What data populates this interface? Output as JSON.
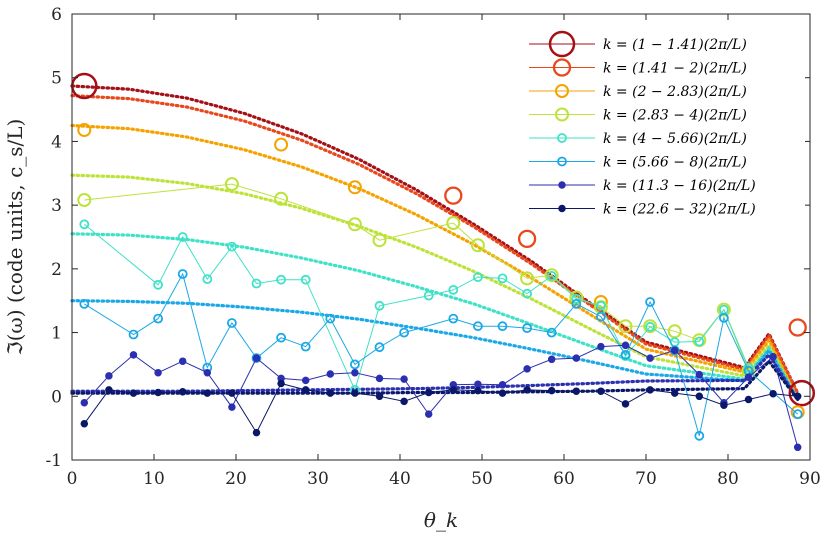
{
  "chart_data": {
    "type": "line",
    "title": "",
    "xlabel": "θ_k",
    "ylabel": "ℑ(ω) (code units, c_s/L)",
    "xlim": [
      0,
      90
    ],
    "ylim": [
      -1,
      6
    ],
    "xticks": [
      "0",
      "10",
      "20",
      "30",
      "40",
      "50",
      "60",
      "70",
      "80",
      "90"
    ],
    "yticks": [
      "-1",
      "0",
      "1",
      "2",
      "3",
      "4",
      "5",
      "6"
    ],
    "legend_position": "top-right",
    "series": [
      {
        "name": "k = (1 − 1.41)(2π/L)",
        "color": "#a50f15",
        "marker_size": "xl",
        "points": [
          [
            1.5,
            4.87
          ],
          [
            89.0,
            0.05
          ]
        ],
        "theory": [
          4.87,
          4.82,
          4.68,
          4.44,
          4.12,
          3.72,
          3.24,
          2.7,
          2.12,
          1.48,
          0.85,
          0.45,
          0.98,
          0.05
        ]
      },
      {
        "name": "k = (1.41 − 2)(2π/L)",
        "color": "#e8481c",
        "marker_size": "lg",
        "points": [
          [
            46.5,
            3.15
          ],
          [
            55.5,
            2.47
          ],
          [
            88.5,
            1.08
          ]
        ],
        "theory": [
          4.72,
          4.67,
          4.54,
          4.32,
          4.02,
          3.64,
          3.18,
          2.66,
          2.08,
          1.45,
          0.82,
          0.42,
          0.95,
          0.05
        ]
      },
      {
        "name": "k = (2 − 2.83)(2π/L)",
        "color": "#f5a300",
        "marker_size": "md",
        "points": [
          [
            1.5,
            4.18
          ],
          [
            25.5,
            3.95
          ],
          [
            34.5,
            3.28
          ],
          [
            64.5,
            1.48
          ],
          [
            88.5,
            -0.25
          ]
        ],
        "theory": [
          4.25,
          4.2,
          4.07,
          3.87,
          3.6,
          3.26,
          2.85,
          2.38,
          1.86,
          1.3,
          0.74,
          0.38,
          0.88,
          -0.05
        ]
      },
      {
        "name": "k = (2.83 − 4)(2π/L)",
        "color": "#bde33a",
        "marker_size": "md",
        "points": [
          [
            1.5,
            3.08
          ],
          [
            19.5,
            3.33
          ],
          [
            25.5,
            3.1
          ],
          [
            34.5,
            2.7
          ],
          [
            37.5,
            2.45
          ],
          [
            46.5,
            2.72
          ],
          [
            49.5,
            2.37
          ],
          [
            55.5,
            1.85
          ],
          [
            58.5,
            1.9
          ],
          [
            61.5,
            1.55
          ],
          [
            64.5,
            1.4
          ],
          [
            67.5,
            1.1
          ],
          [
            70.5,
            1.1
          ],
          [
            73.5,
            1.02
          ],
          [
            76.5,
            0.88
          ],
          [
            79.5,
            1.36
          ],
          [
            82.5,
            0.4
          ]
        ],
        "theory": [
          3.47,
          3.44,
          3.34,
          3.18,
          2.95,
          2.67,
          2.34,
          1.96,
          1.53,
          1.07,
          0.62,
          0.32,
          0.8,
          -0.05
        ]
      },
      {
        "name": "k = (4 − 5.66)(2π/L)",
        "color": "#3fe2c7",
        "marker_size": "sm",
        "points": [
          [
            1.5,
            2.7
          ],
          [
            10.5,
            1.75
          ],
          [
            13.5,
            2.5
          ],
          [
            16.5,
            1.84
          ],
          [
            19.5,
            2.35
          ],
          [
            22.5,
            1.77
          ],
          [
            25.5,
            1.83
          ],
          [
            28.5,
            1.83
          ],
          [
            34.5,
            0.1
          ],
          [
            37.5,
            1.42
          ],
          [
            43.5,
            1.58
          ],
          [
            46.5,
            1.67
          ],
          [
            49.5,
            1.87
          ],
          [
            52.5,
            1.85
          ],
          [
            55.5,
            1.61
          ],
          [
            58.5,
            1.89
          ],
          [
            61.5,
            1.53
          ],
          [
            64.5,
            1.42
          ],
          [
            67.5,
            0.63
          ],
          [
            70.5,
            1.09
          ],
          [
            73.5,
            0.85
          ],
          [
            76.5,
            0.86
          ],
          [
            79.5,
            1.36
          ],
          [
            82.5,
            0.45
          ]
        ],
        "theory": [
          2.55,
          2.53,
          2.46,
          2.34,
          2.17,
          1.97,
          1.72,
          1.45,
          1.13,
          0.8,
          0.48,
          0.27,
          0.75,
          -0.05
        ]
      },
      {
        "name": "k = (5.66 − 8)(2π/L)",
        "color": "#1ba8e6",
        "marker_size": "sm",
        "points": [
          [
            1.5,
            1.45
          ],
          [
            7.5,
            0.97
          ],
          [
            10.5,
            1.22
          ],
          [
            13.5,
            1.92
          ],
          [
            16.5,
            0.45
          ],
          [
            19.5,
            1.15
          ],
          [
            22.5,
            0.6
          ],
          [
            25.5,
            0.92
          ],
          [
            28.5,
            0.78
          ],
          [
            31.5,
            1.22
          ],
          [
            34.5,
            0.5
          ],
          [
            37.5,
            0.77
          ],
          [
            40.5,
            1.0
          ],
          [
            46.5,
            1.22
          ],
          [
            49.5,
            1.1
          ],
          [
            52.5,
            1.1
          ],
          [
            55.5,
            1.07
          ],
          [
            58.5,
            1.0
          ],
          [
            61.5,
            1.45
          ],
          [
            64.5,
            1.25
          ],
          [
            67.5,
            0.65
          ],
          [
            70.5,
            1.48
          ],
          [
            73.5,
            0.72
          ],
          [
            76.5,
            -0.62
          ],
          [
            79.5,
            1.23
          ],
          [
            82.5,
            0.4
          ],
          [
            88.5,
            -0.28
          ]
        ],
        "theory": [
          1.5,
          1.49,
          1.46,
          1.4,
          1.32,
          1.21,
          1.07,
          0.92,
          0.74,
          0.55,
          0.35,
          0.24,
          0.72,
          -0.05
        ]
      },
      {
        "name": "k = (11.3 − 16)(2π/L)",
        "color": "#2b2fb0",
        "marker_size": "xs",
        "points": [
          [
            1.5,
            -0.1
          ],
          [
            4.5,
            0.32
          ],
          [
            7.5,
            0.65
          ],
          [
            10.5,
            0.37
          ],
          [
            13.5,
            0.55
          ],
          [
            16.5,
            0.37
          ],
          [
            19.5,
            -0.17
          ],
          [
            22.5,
            0.6
          ],
          [
            25.5,
            0.28
          ],
          [
            28.5,
            0.25
          ],
          [
            31.5,
            0.35
          ],
          [
            34.5,
            0.37
          ],
          [
            37.5,
            0.28
          ],
          [
            40.5,
            0.27
          ],
          [
            43.5,
            -0.28
          ],
          [
            46.5,
            0.18
          ],
          [
            49.5,
            0.19
          ],
          [
            52.5,
            0.18
          ],
          [
            55.5,
            0.43
          ],
          [
            58.5,
            0.58
          ],
          [
            61.5,
            0.6
          ],
          [
            64.5,
            0.78
          ],
          [
            67.5,
            0.8
          ],
          [
            70.5,
            0.6
          ],
          [
            73.5,
            0.72
          ],
          [
            76.5,
            0.34
          ],
          [
            79.5,
            -0.1
          ],
          [
            82.5,
            0.3
          ],
          [
            85.5,
            0.62
          ],
          [
            88.5,
            -0.8
          ]
        ],
        "theory": [
          0.08,
          0.08,
          0.08,
          0.09,
          0.1,
          0.11,
          0.12,
          0.14,
          0.17,
          0.2,
          0.24,
          0.25,
          0.65,
          -0.05
        ]
      },
      {
        "name": "k = (22.6 − 32)(2π/L)",
        "color": "#0b1869",
        "marker_size": "xs",
        "points": [
          [
            1.5,
            -0.43
          ],
          [
            4.5,
            0.1
          ],
          [
            7.5,
            0.05
          ],
          [
            10.5,
            0.06
          ],
          [
            13.5,
            0.07
          ],
          [
            16.5,
            0.05
          ],
          [
            19.5,
            0.05
          ],
          [
            22.5,
            -0.57
          ],
          [
            25.5,
            0.2
          ],
          [
            28.5,
            0.1
          ],
          [
            31.5,
            0.05
          ],
          [
            34.5,
            0.05
          ],
          [
            37.5,
            0.0
          ],
          [
            40.5,
            -0.08
          ],
          [
            43.5,
            0.06
          ],
          [
            46.5,
            0.1
          ],
          [
            49.5,
            0.09
          ],
          [
            52.5,
            0.05
          ],
          [
            55.5,
            0.1
          ],
          [
            58.5,
            0.09
          ],
          [
            61.5,
            0.08
          ],
          [
            64.5,
            0.08
          ],
          [
            67.5,
            -0.12
          ],
          [
            70.5,
            0.1
          ],
          [
            73.5,
            0.05
          ],
          [
            76.5,
            0.0
          ],
          [
            79.5,
            -0.14
          ],
          [
            82.5,
            -0.05
          ],
          [
            85.5,
            0.04
          ],
          [
            88.5,
            0.0
          ]
        ],
        "theory": [
          0.05,
          0.05,
          0.05,
          0.05,
          0.05,
          0.05,
          0.06,
          0.06,
          0.07,
          0.08,
          0.1,
          0.12,
          0.55,
          -0.05
        ]
      }
    ],
    "theory_x": [
      0,
      7,
      14,
      21,
      28,
      35,
      42,
      49,
      56,
      63,
      70,
      82,
      85,
      88.5
    ]
  }
}
